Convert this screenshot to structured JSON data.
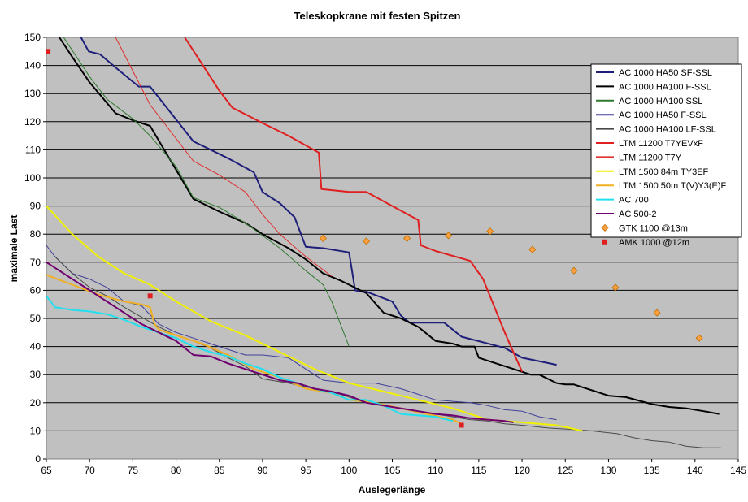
{
  "chart_data": {
    "type": "line",
    "title": "Teleskopkrane mit festen Spitzen",
    "xlabel": "Auslegerlänge",
    "ylabel": "maximale Last",
    "xlim": [
      65,
      145
    ],
    "ylim": [
      0,
      150
    ],
    "xticks": [
      "65",
      "70",
      "75",
      "80",
      "85",
      "90",
      "95",
      "100",
      "105",
      "110",
      "115",
      "120",
      "125",
      "130",
      "135",
      "140",
      "145"
    ],
    "yticks": [
      "0",
      "10",
      "20",
      "30",
      "40",
      "50",
      "60",
      "70",
      "80",
      "90",
      "100",
      "110",
      "120",
      "130",
      "140",
      "150"
    ],
    "plot_background": "#c0c0c0",
    "grid": "horizontal",
    "legend_position": "right",
    "series": [
      {
        "name": "AC 1000 HA50 SF-SSL",
        "kind": "line",
        "color": "#1f1f7a",
        "width": 2,
        "points": [
          [
            69,
            150
          ],
          [
            69.9,
            145
          ],
          [
            71.2,
            144
          ],
          [
            73.5,
            138
          ],
          [
            75.7,
            132.5
          ],
          [
            77,
            132.5
          ],
          [
            82,
            113
          ],
          [
            86,
            107
          ],
          [
            89,
            102
          ],
          [
            90,
            95
          ],
          [
            92,
            91
          ],
          [
            93.7,
            86
          ],
          [
            95,
            75.5
          ],
          [
            97,
            75
          ],
          [
            100,
            73.5
          ],
          [
            100.7,
            60
          ],
          [
            101.5,
            59.5
          ],
          [
            102,
            59.5
          ],
          [
            105,
            56
          ],
          [
            106,
            51
          ],
          [
            107,
            48.5
          ],
          [
            110,
            48.5
          ],
          [
            111,
            48.5
          ],
          [
            113,
            43.5
          ],
          [
            118,
            39.5
          ],
          [
            120,
            36
          ],
          [
            124,
            33.5
          ]
        ]
      },
      {
        "name": "AC 1000 HA100 F-SSL",
        "kind": "line",
        "color": "#000000",
        "width": 2,
        "points": [
          [
            66.5,
            150
          ],
          [
            68,
            143
          ],
          [
            70,
            134
          ],
          [
            73,
            123
          ],
          [
            75,
            120.5
          ],
          [
            77,
            118.5
          ],
          [
            82,
            92.5
          ],
          [
            85,
            88
          ],
          [
            88,
            84
          ],
          [
            90,
            80
          ],
          [
            93,
            75
          ],
          [
            95,
            71
          ],
          [
            97,
            66
          ],
          [
            99,
            63.5
          ],
          [
            100,
            62
          ],
          [
            101.3,
            60
          ],
          [
            102,
            59
          ],
          [
            104,
            52
          ],
          [
            106,
            50
          ],
          [
            108,
            47
          ],
          [
            110,
            42
          ],
          [
            112,
            41
          ],
          [
            113,
            40
          ],
          [
            114.5,
            40
          ],
          [
            115,
            36
          ],
          [
            116,
            35
          ],
          [
            118,
            33
          ],
          [
            120,
            31
          ],
          [
            121,
            30
          ],
          [
            122,
            30
          ],
          [
            124,
            27
          ],
          [
            125,
            26.5
          ],
          [
            126,
            26.5
          ],
          [
            128,
            24.5
          ],
          [
            130,
            22.5
          ],
          [
            132,
            22
          ],
          [
            135,
            19.5
          ],
          [
            137,
            18.5
          ],
          [
            139,
            18
          ],
          [
            141,
            17
          ],
          [
            142.8,
            16
          ]
        ]
      },
      {
        "name": "AC 1000 HA100 SSL",
        "kind": "line",
        "color": "#2e7a2e",
        "width": 1,
        "points": [
          [
            67,
            150
          ],
          [
            70,
            136
          ],
          [
            72,
            128
          ],
          [
            75,
            121
          ],
          [
            77,
            115
          ],
          [
            80,
            104
          ],
          [
            82,
            93
          ],
          [
            85,
            89.5
          ],
          [
            88,
            84
          ],
          [
            92,
            75
          ],
          [
            95,
            67
          ],
          [
            97,
            62
          ],
          [
            98,
            56
          ],
          [
            99,
            48
          ],
          [
            100,
            40
          ]
        ]
      },
      {
        "name": "AC 1000 HA50 F-SSL",
        "kind": "line",
        "color": "#40409a",
        "width": 1,
        "points": [
          [
            65,
            76
          ],
          [
            66,
            72
          ],
          [
            68,
            66
          ],
          [
            70,
            64
          ],
          [
            72,
            61
          ],
          [
            74,
            56
          ],
          [
            76,
            54.5
          ],
          [
            78,
            48
          ],
          [
            80,
            45
          ],
          [
            82,
            43
          ],
          [
            84,
            41
          ],
          [
            86,
            39
          ],
          [
            88,
            37
          ],
          [
            90,
            37
          ],
          [
            93,
            36
          ],
          [
            95,
            32
          ],
          [
            97,
            28
          ],
          [
            100,
            27
          ],
          [
            103,
            27
          ],
          [
            106,
            25
          ],
          [
            108,
            23
          ],
          [
            110,
            21
          ],
          [
            112,
            20.5
          ],
          [
            114,
            20
          ],
          [
            116,
            19
          ],
          [
            118,
            17.5
          ],
          [
            120,
            17
          ],
          [
            122,
            15
          ],
          [
            124,
            14
          ]
        ]
      },
      {
        "name": "AC 1000 HA100 LF-SSL",
        "kind": "line",
        "color": "#4a4a4a",
        "width": 1,
        "points": [
          [
            66,
            72
          ],
          [
            68,
            66
          ],
          [
            70,
            61
          ],
          [
            72,
            58
          ],
          [
            74,
            54
          ],
          [
            76,
            50.5
          ],
          [
            78,
            47
          ],
          [
            80,
            44
          ],
          [
            82,
            42
          ],
          [
            84,
            39.5
          ],
          [
            86,
            36
          ],
          [
            88,
            33
          ],
          [
            90,
            28.5
          ],
          [
            93,
            27
          ],
          [
            96,
            25
          ],
          [
            99,
            23
          ],
          [
            102,
            20
          ],
          [
            104,
            19
          ],
          [
            106,
            18
          ],
          [
            108,
            17
          ],
          [
            110,
            16
          ],
          [
            112,
            15
          ],
          [
            114,
            14
          ],
          [
            116,
            13.5
          ],
          [
            118,
            12.5
          ],
          [
            120,
            12
          ],
          [
            123,
            11
          ],
          [
            126,
            10.5
          ],
          [
            128,
            10
          ],
          [
            131,
            9
          ],
          [
            133,
            7.5
          ],
          [
            135,
            6.5
          ],
          [
            137,
            6
          ],
          [
            139,
            4.5
          ],
          [
            141,
            4
          ],
          [
            143,
            4
          ]
        ]
      },
      {
        "name": "LTM 11200 T7YEVxF",
        "kind": "line",
        "color": "#e02020",
        "width": 2,
        "points": [
          [
            81,
            150
          ],
          [
            85,
            131
          ],
          [
            86.5,
            125
          ],
          [
            90,
            119.5
          ],
          [
            93,
            115
          ],
          [
            96.5,
            109
          ],
          [
            96.8,
            96
          ],
          [
            100,
            95
          ],
          [
            102,
            95
          ],
          [
            105,
            90
          ],
          [
            108,
            85
          ],
          [
            108.3,
            76
          ],
          [
            110,
            74
          ],
          [
            114,
            70.5
          ],
          [
            115.5,
            64
          ],
          [
            118,
            45
          ],
          [
            120,
            31
          ]
        ]
      },
      {
        "name": "LTM 11200 T7Y",
        "kind": "line",
        "color": "#e03030",
        "width": 1,
        "points": [
          [
            73,
            150
          ],
          [
            75,
            138
          ],
          [
            77,
            126
          ],
          [
            79,
            118
          ],
          [
            82,
            106
          ],
          [
            85,
            101
          ],
          [
            88,
            95
          ],
          [
            90,
            87
          ],
          [
            92,
            80
          ],
          [
            95,
            72
          ],
          [
            98,
            65
          ]
        ]
      },
      {
        "name": "LTM 1500 84m TY3EF",
        "kind": "line",
        "color": "#f0f000",
        "width": 2,
        "points": [
          [
            65,
            90
          ],
          [
            68,
            80
          ],
          [
            71,
            72
          ],
          [
            74,
            66
          ],
          [
            77,
            62
          ],
          [
            80,
            56
          ],
          [
            84,
            49
          ],
          [
            88,
            44
          ],
          [
            92,
            38
          ],
          [
            96,
            32
          ],
          [
            100,
            27
          ],
          [
            104,
            24
          ],
          [
            108,
            21
          ],
          [
            112,
            18
          ],
          [
            116,
            14
          ],
          [
            120,
            13
          ],
          [
            124,
            12
          ],
          [
            127,
            10
          ]
        ]
      },
      {
        "name": "LTM 1500 50m T(V)Y3(E)F",
        "kind": "line",
        "color": "#f0b020",
        "width": 2,
        "points": [
          [
            65,
            65.5
          ],
          [
            68,
            62
          ],
          [
            71,
            58.5
          ],
          [
            74,
            56
          ],
          [
            76,
            55
          ],
          [
            77,
            54
          ],
          [
            77.5,
            48
          ],
          [
            78,
            46
          ],
          [
            80,
            44
          ],
          [
            83,
            41
          ],
          [
            86,
            37
          ],
          [
            89,
            32
          ],
          [
            92,
            29
          ],
          [
            95,
            25
          ],
          [
            98,
            23.5
          ],
          [
            100,
            21
          ],
          [
            103,
            20
          ],
          [
            106,
            18
          ],
          [
            109,
            16
          ],
          [
            112,
            14
          ],
          [
            113,
            12.5
          ]
        ]
      },
      {
        "name": "AC 700",
        "kind": "line",
        "color": "#20e0f0",
        "width": 2,
        "points": [
          [
            65,
            58
          ],
          [
            66,
            54
          ],
          [
            68,
            53
          ],
          [
            70,
            52.5
          ],
          [
            72,
            51.5
          ],
          [
            74,
            49.5
          ],
          [
            76,
            47
          ],
          [
            78,
            45
          ],
          [
            80,
            43
          ],
          [
            82,
            40
          ],
          [
            84,
            38
          ],
          [
            86,
            36.5
          ],
          [
            88,
            34
          ],
          [
            90,
            32
          ],
          [
            92,
            29
          ],
          [
            94,
            27
          ],
          [
            96,
            25
          ],
          [
            98,
            23.5
          ],
          [
            100,
            21
          ],
          [
            102,
            21
          ],
          [
            104,
            19
          ],
          [
            106,
            16
          ],
          [
            108,
            15.5
          ],
          [
            110,
            15
          ],
          [
            112,
            13.5
          ]
        ]
      },
      {
        "name": "AC 500-2",
        "kind": "line",
        "color": "#700070",
        "width": 2,
        "points": [
          [
            65,
            70
          ],
          [
            66,
            68
          ],
          [
            68,
            64
          ],
          [
            70,
            60
          ],
          [
            72,
            56
          ],
          [
            74,
            52
          ],
          [
            76,
            48
          ],
          [
            78,
            45
          ],
          [
            80,
            42
          ],
          [
            82,
            37
          ],
          [
            84,
            36.5
          ],
          [
            86,
            34
          ],
          [
            88,
            32
          ],
          [
            90,
            30
          ],
          [
            92,
            28
          ],
          [
            94,
            27
          ],
          [
            96,
            25
          ],
          [
            98,
            24
          ],
          [
            100,
            22.5
          ],
          [
            102,
            20
          ],
          [
            104,
            19
          ],
          [
            106,
            18
          ],
          [
            108,
            17
          ],
          [
            110,
            16
          ],
          [
            112,
            15.5
          ],
          [
            114,
            14.5
          ],
          [
            116,
            14
          ],
          [
            118,
            13.5
          ],
          [
            119,
            13
          ]
        ]
      },
      {
        "name": "GTK 1100 @13m",
        "kind": "diamond",
        "color": "#ffa040",
        "points": [
          [
            97,
            78.5
          ],
          [
            102,
            77.5
          ],
          [
            106.7,
            78.5
          ],
          [
            111.5,
            79.5
          ],
          [
            116.3,
            81
          ],
          [
            121.2,
            74.5
          ],
          [
            126,
            67
          ],
          [
            130.8,
            61
          ],
          [
            135.6,
            52
          ],
          [
            140.5,
            43
          ]
        ]
      },
      {
        "name": "AMK 1000 @12m",
        "kind": "square",
        "color": "#e02020",
        "points": [
          [
            65.2,
            145
          ],
          [
            77,
            58
          ],
          [
            113,
            12
          ]
        ]
      }
    ]
  }
}
